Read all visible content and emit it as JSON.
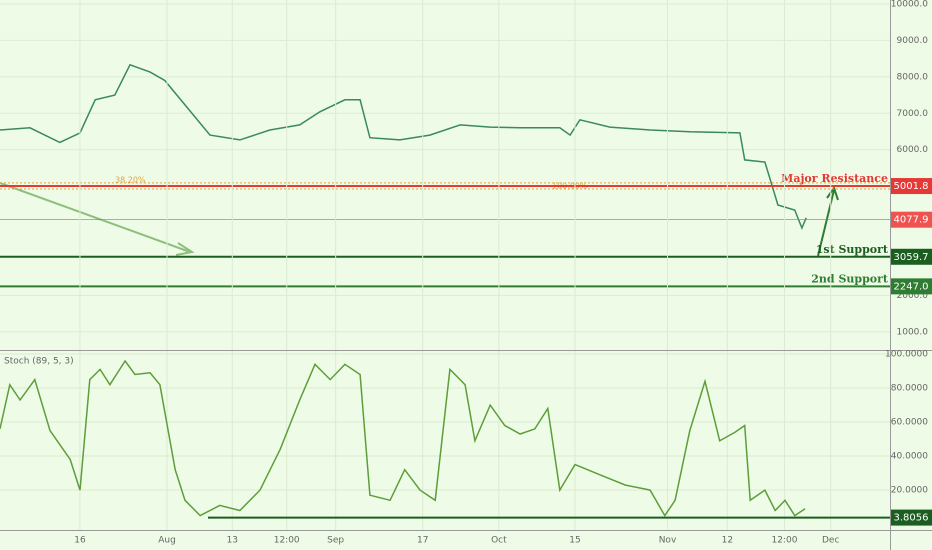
{
  "chart_data": [
    {
      "type": "line",
      "ylim": [
        500,
        10110
      ],
      "yticks": [
        {
          "value": 10000,
          "label": "10000.0"
        },
        {
          "value": 9000,
          "label": "9000.0"
        },
        {
          "value": 8000,
          "label": "8000.0"
        },
        {
          "value": 7000,
          "label": "7000.0"
        },
        {
          "value": 6000,
          "label": "6000.0"
        },
        {
          "value": 2000,
          "label": "2000.0"
        },
        {
          "value": 1000,
          "label": "1000.0"
        }
      ],
      "xlim": [
        -14.7,
        148.9
      ],
      "grid": true,
      "series": [
        {
          "color": "#3a8a5c",
          "x": [
            -14.7,
            -9.2,
            -3.7,
            0,
            2.8,
            6.4,
            9.2,
            12.9,
            15.6,
            19.3,
            23.9,
            29.4,
            34.9,
            40.4,
            44.1,
            48.7,
            51.5,
            53.3,
            58.8,
            64.3,
            69.9,
            75.4,
            80.9,
            88.2,
            90.1,
            91.9,
            97.4,
            104.8,
            112.1,
            121.3,
            122.2,
            125.9,
            127.2,
            128.3,
            131.4,
            132.7,
            133.5
          ],
          "values": [
            6540,
            6600,
            6200,
            6460,
            7370,
            7500,
            8330,
            8130,
            7900,
            7230,
            6400,
            6270,
            6540,
            6680,
            7040,
            7370,
            7370,
            6330,
            6270,
            6400,
            6680,
            6620,
            6600,
            6600,
            6400,
            6820,
            6620,
            6540,
            6490,
            6460,
            5720,
            5660,
            5030,
            4480,
            4340,
            3850,
            4130
          ]
        }
      ],
      "levels": [
        {
          "label": "Major Resistance",
          "value": 5001.8,
          "price_label": "5001.8",
          "color": "#e53935"
        },
        {
          "label": "1st Support",
          "value": 3059.7,
          "price_label": "3059.7",
          "color": "#1b5e20"
        },
        {
          "label": "2nd Support",
          "value": 2247,
          "price_label": "2247.0",
          "color": "#2e7d32"
        }
      ],
      "last_price": {
        "value": 4077.9,
        "price_label": "4077.9",
        "color": "#ef5350"
      },
      "fib_levels": [
        {
          "label": "38.20%",
          "value": 5090
        },
        {
          "label": "100.00%",
          "value": 4920
        }
      ]
    },
    {
      "type": "line",
      "title": "Stoch (89, 5, 3)",
      "ylim": [
        -3.5,
        101.8
      ],
      "yticks": [
        {
          "value": 100,
          "label": "100.0000"
        },
        {
          "value": 80,
          "label": "80.0000"
        },
        {
          "value": 60,
          "label": "60.0000"
        },
        {
          "value": 40,
          "label": "40.0000"
        },
        {
          "value": 20,
          "label": "20.0000"
        }
      ],
      "xlim": [
        -14.7,
        148.9
      ],
      "xticks": [
        {
          "value": 0,
          "label": "16"
        },
        {
          "value": 16,
          "label": "Aug"
        },
        {
          "value": 28,
          "label": "13"
        },
        {
          "value": 38,
          "label": "12:00"
        },
        {
          "value": 47,
          "label": "Sep"
        },
        {
          "value": 63,
          "label": "17"
        },
        {
          "value": 77,
          "label": "Oct"
        },
        {
          "value": 91,
          "label": "15"
        },
        {
          "value": 108,
          "label": "Nov"
        },
        {
          "value": 119,
          "label": "12"
        },
        {
          "value": 129.5,
          "label": "12:00"
        },
        {
          "value": 138,
          "label": "Dec"
        }
      ],
      "grid": true,
      "series": [
        {
          "color": "#5d9e3a",
          "x": [
            -14.7,
            -12.9,
            -11.0,
            -8.3,
            -5.5,
            -1.8,
            0,
            1.8,
            3.7,
            5.5,
            8.3,
            10.1,
            12.9,
            14.7,
            17.5,
            19.3,
            22.1,
            25.7,
            29.4,
            33.1,
            36.8,
            40.4,
            43.2,
            46.0,
            48.7,
            51.5,
            53.3,
            57.0,
            59.7,
            62.5,
            65.3,
            68.0,
            70.8,
            72.6,
            75.4,
            78.1,
            80.9,
            83.6,
            86.0,
            88.2,
            91.0,
            95.6,
            100.2,
            104.8,
            107.5,
            109.4,
            112.1,
            114.9,
            117.6,
            120.4,
            122.2,
            123.2,
            125.9,
            127.8,
            129.6,
            131.4,
            133.3
          ],
          "values": [
            56,
            82,
            73,
            85,
            55,
            38,
            20,
            85,
            91,
            82,
            96,
            88,
            89,
            82,
            32,
            14,
            5,
            11,
            8,
            20,
            44,
            73,
            94,
            85,
            94,
            88,
            17,
            14,
            32,
            20,
            14,
            91,
            82,
            49,
            70,
            58,
            53,
            56,
            68,
            20,
            35,
            29,
            23,
            20,
            5,
            14,
            55,
            84,
            49,
            54,
            58,
            14,
            20,
            8,
            14,
            5,
            9
          ]
        }
      ],
      "levels": [
        {
          "value": 3.8056,
          "price_label": "3.8056",
          "color": "#1b5e20"
        }
      ]
    }
  ]
}
